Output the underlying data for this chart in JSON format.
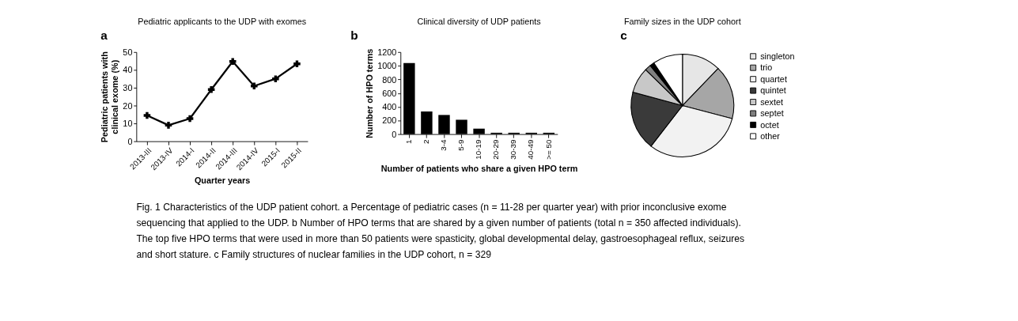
{
  "chart_data": [
    {
      "type": "line",
      "title": "Pediatric applicants to the UDP with exomes",
      "annotations": [
        "a"
      ],
      "xlabel": "Quarter years",
      "ylabel": "Pediatric patients with clinical exome (%)",
      "categories": [
        "2013-III",
        "2013-IV",
        "2014-I",
        "2014-II",
        "2014-III",
        "2014-IV",
        "2015-I",
        "2015-II"
      ],
      "series": [
        {
          "color": "#000000",
          "values": [
            14.5,
            9,
            12.7,
            29,
            44.7,
            31,
            35,
            43.4
          ]
        }
      ],
      "ylim": [
        0,
        50
      ],
      "yticks": [
        0,
        10,
        20,
        30,
        40,
        50
      ],
      "marker": "cross",
      "line_style": "solid",
      "grid": false
    },
    {
      "type": "bar",
      "title": "Clinical diversity of UDP patients",
      "annotations": [
        "b"
      ],
      "xlabel": "Number of patients who share a given HPO term",
      "ylabel": "Number of HPO terms",
      "categories": [
        "1",
        "2",
        "3-4",
        "5-9",
        "10-19",
        "20-29",
        "30-39",
        "40-49",
        ">= 50"
      ],
      "series": [
        {
          "color": "#000000",
          "values": [
            1040,
            330,
            280,
            210,
            80,
            20,
            20,
            20,
            20
          ]
        }
      ],
      "ylim": [
        0,
        1200
      ],
      "yticks": [
        0,
        200,
        400,
        600,
        800,
        1000,
        1200
      ],
      "grid": false
    },
    {
      "type": "pie",
      "title": "Family sizes in the UDP cohort",
      "annotations": [
        "c"
      ],
      "categories": [
        "singleton",
        "trio",
        "quartet",
        "quintet",
        "sextet",
        "septet",
        "octet",
        "other"
      ],
      "values": [
        12.2,
        16.9,
        31.4,
        18.7,
        8.1,
        1.9,
        1.4,
        9.4
      ],
      "colors": [
        "#e6e6e6",
        "#a6a6a6",
        "#f2f2f2",
        "#3a3a3a",
        "#c8c8c8",
        "#7f7f7f",
        "#000000",
        "#ffffff"
      ],
      "legend": "right"
    },
    {
      "type": "other",
      "annotations": [
        "Fig. 1 Characteristics of the UDP patient cohort. a Percentage of pediatric cases (n = 11-28 per quarter year) with prior inconclusive exome",
        "sequencing that applied to the UDP. b Number of HPO terms that are shared by a given number of patients (total n = 350 affected individuals).",
        "The top five HPO terms that were used in more than 50 patients were spasticity, global developmental delay, gastroesophageal reflux, seizures",
        "and short stature. c Family structures of nuclear families in the UDP cohort, n = 329"
      ]
    }
  ]
}
